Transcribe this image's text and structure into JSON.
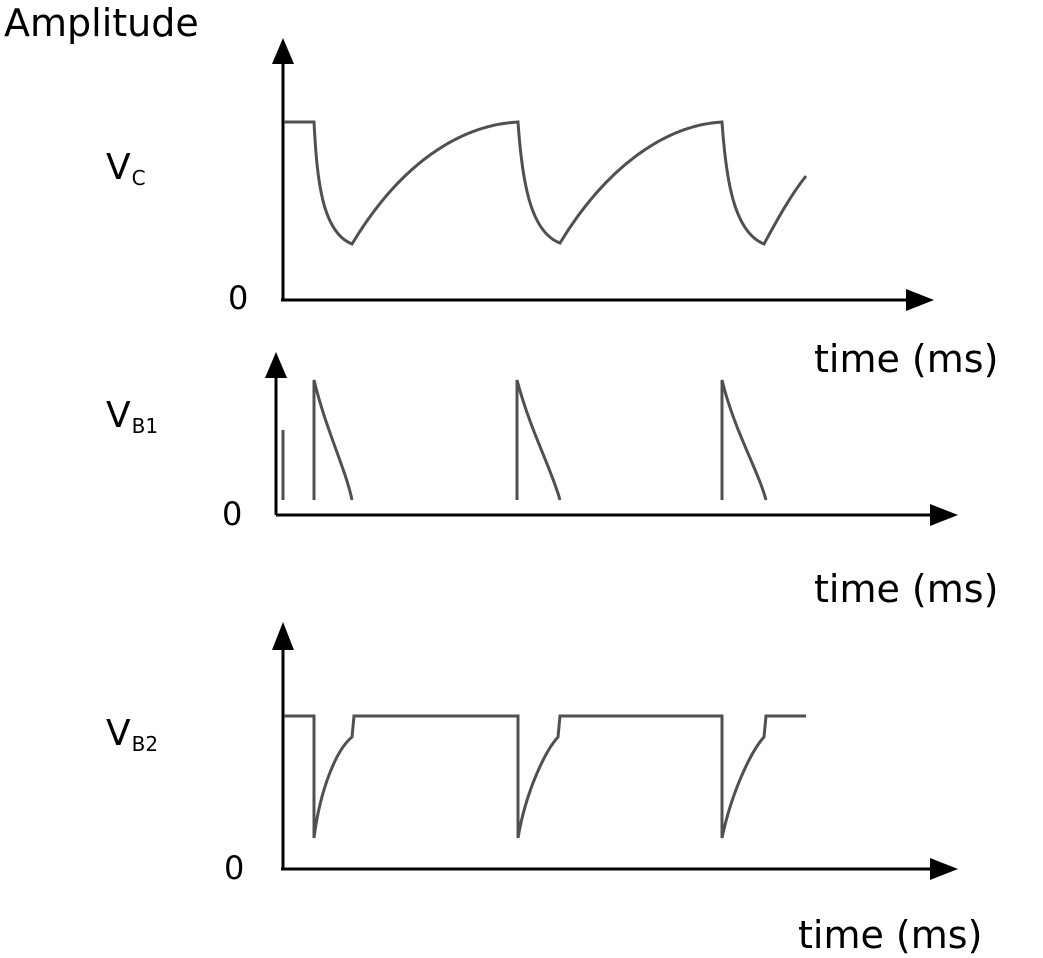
{
  "title": "Amplitude",
  "panels": [
    {
      "id": "vc",
      "signal": "V",
      "subscript": "C",
      "zero": "0",
      "time_label": "time  (ms)"
    },
    {
      "id": "vb1",
      "signal": "V",
      "subscript": "B1",
      "zero": "0",
      "time_label": "time   (ms)"
    },
    {
      "id": "vb2",
      "signal": "V",
      "subscript": "B2",
      "zero": "0",
      "time_label": "time (ms)"
    }
  ],
  "colors": {
    "waveform": "#505050",
    "axis": "#000000"
  }
}
